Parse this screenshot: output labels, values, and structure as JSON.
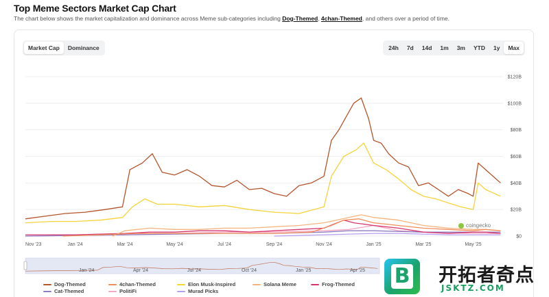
{
  "header": {
    "title": "Top Meme Sectors Market Cap Chart",
    "desc_prefix": "The chart below shows the market capitalization and dominance across Meme sub-categories including ",
    "link1": "Dog-Themed",
    "sep": ", ",
    "link2": "4chan-Themed",
    "desc_suffix": ", and others over a period of time."
  },
  "tabs": [
    {
      "label": "Market Cap",
      "active": true
    },
    {
      "label": "Dominance",
      "active": false
    }
  ],
  "ranges": [
    {
      "label": "24h",
      "active": false
    },
    {
      "label": "7d",
      "active": false
    },
    {
      "label": "14d",
      "active": false
    },
    {
      "label": "1m",
      "active": false
    },
    {
      "label": "3m",
      "active": false
    },
    {
      "label": "YTD",
      "active": false
    },
    {
      "label": "1y",
      "active": false
    },
    {
      "label": "Max",
      "active": true
    }
  ],
  "watermark": "coingecko",
  "brand": {
    "name": "开拓者奇点",
    "url": "JSKTZ.COM"
  },
  "chart_data": {
    "type": "line",
    "title": "",
    "xlabel": "",
    "ylabel": "",
    "ylim": [
      0,
      120
    ],
    "y_ticks": [
      0,
      20,
      40,
      60,
      80,
      100,
      120
    ],
    "y_tick_labels": [
      "$0",
      "$20B",
      "$40B",
      "$60B",
      "$80B",
      "$100B",
      "$120B"
    ],
    "x_ticks": [
      {
        "t": 0.0,
        "label": "Nov '23"
      },
      {
        "t": 2.0,
        "label": "Jan '24"
      },
      {
        "t": 4.0,
        "label": "Mar '24"
      },
      {
        "t": 6.0,
        "label": "May '24"
      },
      {
        "t": 8.0,
        "label": "Jul '24"
      },
      {
        "t": 10.0,
        "label": "Sep '24"
      },
      {
        "t": 12.0,
        "label": "Nov '24"
      },
      {
        "t": 14.0,
        "label": "Jan '25"
      },
      {
        "t": 16.0,
        "label": "Mar '25"
      },
      {
        "t": 18.0,
        "label": "May '25"
      }
    ],
    "navigator_labels": [
      "Jan '24",
      "Apr '24",
      "Jul '24",
      "Oct '24",
      "Jan '25",
      "Apr '25"
    ],
    "x_range": [
      0,
      19.2
    ],
    "series": [
      {
        "name": "Dog-Themed",
        "color": "#b5532a",
        "x": [
          0,
          0.8,
          1.6,
          2.4,
          3.2,
          3.9,
          4.2,
          4.7,
          5.1,
          5.5,
          6.0,
          6.5,
          7.0,
          7.5,
          8.0,
          8.5,
          9.0,
          9.5,
          10.0,
          10.5,
          11.0,
          11.5,
          12.0,
          12.3,
          12.6,
          12.9,
          13.2,
          13.5,
          13.8,
          14.0,
          14.3,
          14.6,
          15.0,
          15.4,
          15.8,
          16.2,
          16.6,
          17.0,
          17.4,
          17.8,
          18.0,
          18.2,
          18.5,
          18.8,
          19.1
        ],
        "y": [
          13,
          15,
          17,
          18,
          20,
          22,
          50,
          55,
          62,
          48,
          46,
          50,
          45,
          38,
          37,
          42,
          35,
          36,
          32,
          30,
          38,
          40,
          45,
          72,
          80,
          90,
          100,
          104,
          88,
          72,
          70,
          62,
          55,
          52,
          38,
          40,
          35,
          30,
          35,
          32,
          30,
          55,
          50,
          45,
          40
        ]
      },
      {
        "name": "4chan-Themed",
        "color": "#f08e5a",
        "x": [
          1.5,
          3,
          4.5,
          6,
          8,
          10,
          11.5,
          12.3,
          12.8,
          13.4,
          14,
          15,
          16,
          17,
          18,
          18.5,
          19.1
        ],
        "y": [
          0,
          1,
          2,
          2,
          2,
          2,
          3,
          8,
          12,
          13,
          10,
          8,
          6,
          5,
          4,
          5,
          4
        ]
      },
      {
        "name": "Elon Musk-Inspired",
        "color": "#f5d33a",
        "x": [
          0,
          1,
          2,
          3,
          3.9,
          4.3,
          4.8,
          5.3,
          6,
          7,
          8,
          9,
          10,
          11,
          12,
          12.3,
          12.8,
          13.3,
          13.6,
          14.0,
          14.5,
          15,
          15.5,
          16,
          16.5,
          17,
          17.5,
          18,
          18.2,
          18.5,
          19.1
        ],
        "y": [
          10,
          11,
          11,
          12,
          14,
          22,
          28,
          24,
          24,
          22,
          23,
          20,
          18,
          17,
          22,
          45,
          60,
          65,
          70,
          55,
          50,
          43,
          35,
          30,
          28,
          25,
          22,
          20,
          40,
          35,
          30
        ]
      },
      {
        "name": "Solana Meme",
        "color": "#f5b37e",
        "x": [
          3.5,
          4,
          5,
          6,
          7,
          8,
          9,
          10,
          11,
          12,
          12.5,
          13,
          13.5,
          14,
          15,
          15.5,
          16,
          17,
          18,
          18.5,
          19.1
        ],
        "y": [
          0,
          4,
          6,
          5,
          5,
          6,
          6,
          7,
          8,
          10,
          12,
          14,
          16,
          14,
          12,
          10,
          8,
          6,
          5,
          5,
          4
        ]
      },
      {
        "name": "Frog-Themed",
        "color": "#d6336c",
        "x": [
          0,
          2,
          4,
          5,
          6,
          7,
          8,
          9,
          10,
          11,
          12,
          12.4,
          12.8,
          13.2,
          13.6,
          14,
          14.5,
          15,
          16,
          17,
          18,
          18.5,
          19.1
        ],
        "y": [
          1,
          1,
          2,
          3,
          3,
          4,
          4,
          3,
          4,
          5,
          6,
          9,
          12,
          10,
          9,
          8,
          7,
          6,
          3,
          2,
          3,
          3,
          2
        ]
      },
      {
        "name": "Cat-Themed",
        "color": "#8e7cc3",
        "x": [
          0,
          4,
          6,
          8,
          10,
          12,
          13,
          14,
          16,
          18,
          19.1
        ],
        "y": [
          0,
          1,
          1.5,
          2,
          2,
          3,
          4,
          4,
          3,
          3,
          3
        ]
      },
      {
        "name": "PolitiFi",
        "color": "#f4a7c1",
        "x": [
          0,
          4,
          6,
          8,
          10,
          12,
          13,
          14,
          15,
          16,
          18,
          19.1
        ],
        "y": [
          0,
          1,
          2,
          3,
          3,
          4,
          5,
          8,
          4,
          3,
          2,
          2
        ]
      },
      {
        "name": "Murad Picks",
        "color": "#b59df0",
        "x": [
          10,
          11,
          12,
          13,
          14,
          15,
          16,
          17,
          18,
          19.1
        ],
        "y": [
          0,
          0.5,
          1,
          1.5,
          2,
          2,
          1.5,
          1,
          1,
          1
        ]
      }
    ]
  }
}
